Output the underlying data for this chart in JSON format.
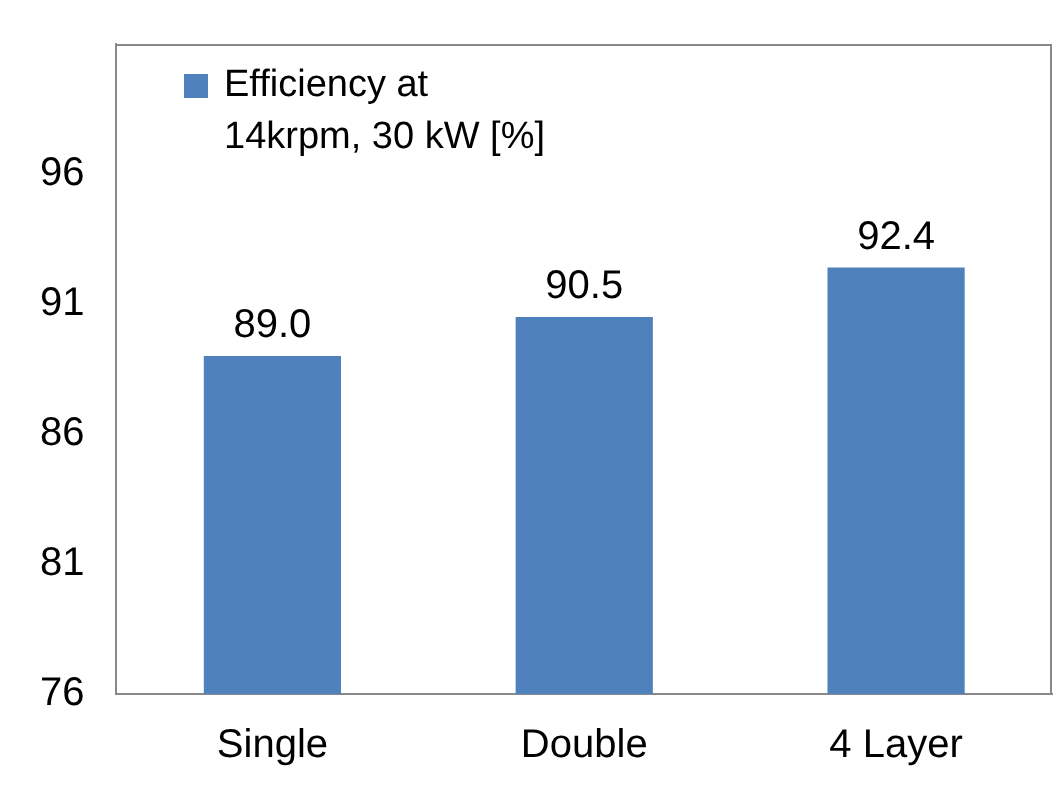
{
  "chart_data": {
    "type": "bar",
    "categories": [
      "Single",
      "Double",
      "4 Layer"
    ],
    "series": [
      {
        "name": "Efficiency at 14krpm, 30 kW [%]",
        "color": "#4f81bd",
        "values": [
          89.0,
          90.5,
          92.4
        ],
        "value_labels": [
          "89.0",
          "90.5",
          "92.4"
        ]
      }
    ],
    "ylim": [
      76,
      101
    ],
    "yticks": [
      76,
      81,
      86,
      91,
      96
    ],
    "grid": false,
    "legend": "top left"
  }
}
